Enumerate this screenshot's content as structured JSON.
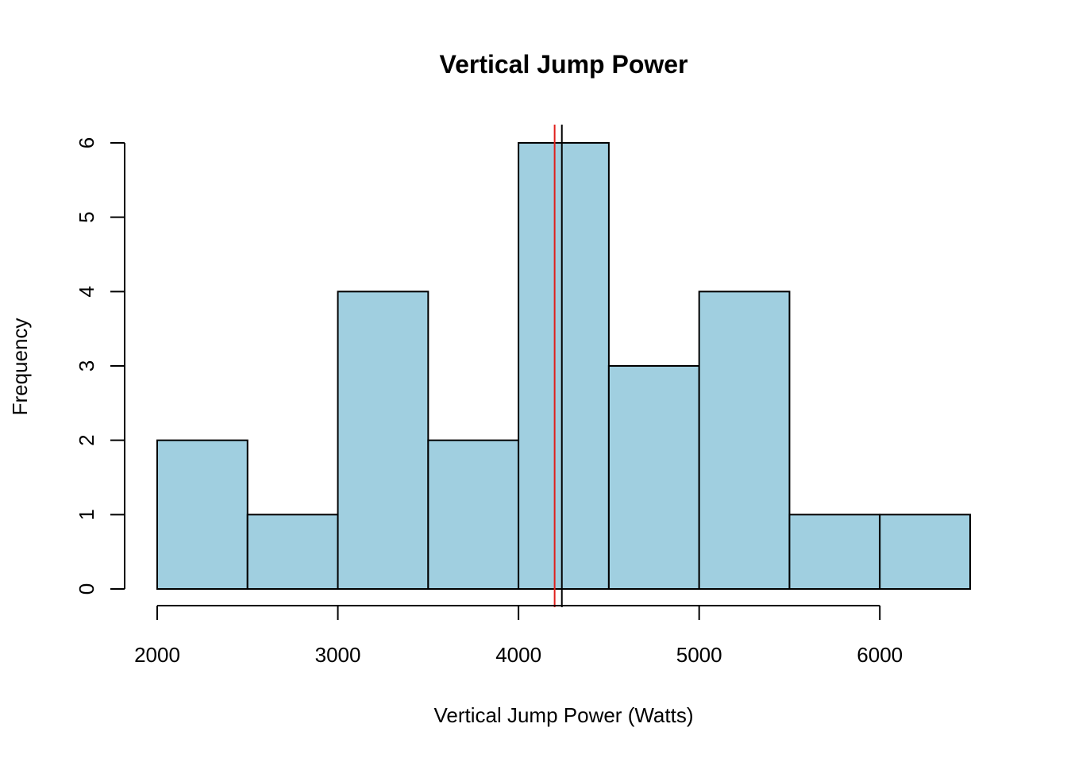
{
  "chart_data": {
    "type": "bar",
    "subtype": "histogram",
    "title": "Vertical Jump Power",
    "xlabel": "Vertical Jump Power (Watts)",
    "ylabel": "Frequency",
    "bins": [
      {
        "start": 2000,
        "end": 2500,
        "count": 2
      },
      {
        "start": 2500,
        "end": 3000,
        "count": 1
      },
      {
        "start": 3000,
        "end": 3500,
        "count": 4
      },
      {
        "start": 3500,
        "end": 4000,
        "count": 2
      },
      {
        "start": 4000,
        "end": 4500,
        "count": 6
      },
      {
        "start": 4500,
        "end": 5000,
        "count": 3
      },
      {
        "start": 5000,
        "end": 5500,
        "count": 4
      },
      {
        "start": 5500,
        "end": 6000,
        "count": 1
      },
      {
        "start": 6000,
        "end": 6500,
        "count": 1
      }
    ],
    "x_ticks": [
      "2000",
      "3000",
      "4000",
      "5000",
      "6000"
    ],
    "y_ticks": [
      "0",
      "1",
      "2",
      "3",
      "4",
      "5",
      "6"
    ],
    "xlim": [
      2000,
      6500
    ],
    "ylim": [
      0,
      6
    ],
    "vertical_lines": [
      {
        "x": 4200,
        "color": "#e0201c"
      },
      {
        "x": 4240,
        "color": "#000000"
      }
    ],
    "bar_color": "#a0cfe0",
    "bar_edge_color": "#000000",
    "grid": false,
    "legend": "none"
  }
}
